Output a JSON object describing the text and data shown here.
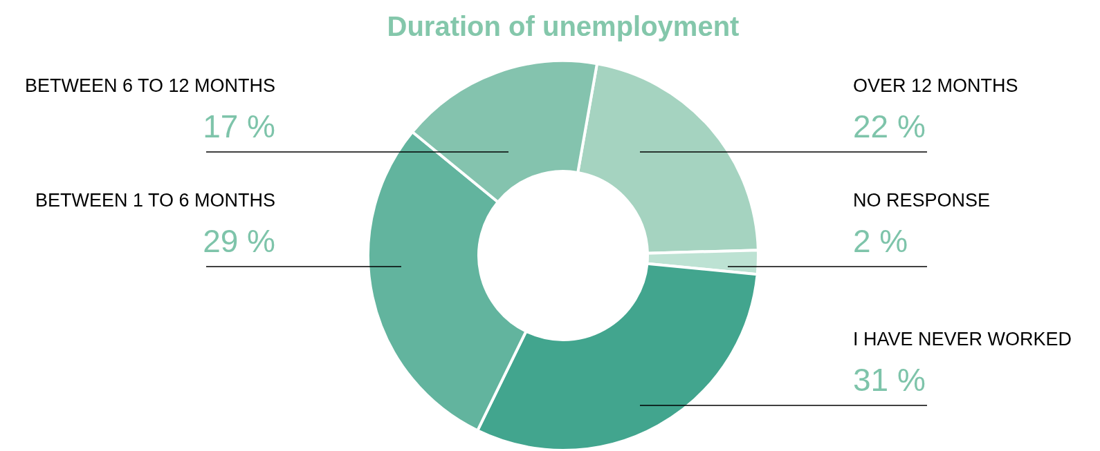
{
  "chart_data": {
    "type": "donut",
    "title": "Duration of unemployment",
    "categories": [
      "OVER 12 MONTHS",
      "NO RESPONSE",
      "I HAVE NEVER WORKED",
      "BETWEEN 1 TO 6 MONTHS",
      "BETWEEN 6 TO 12 MONTHS"
    ],
    "values": [
      22,
      2,
      31,
      29,
      17
    ],
    "colors": [
      "#a5d3c0",
      "#bde2d3",
      "#42a58e",
      "#62b49e",
      "#84c3ae"
    ],
    "value_labels": [
      "22 %",
      "2 %",
      "31 %",
      "29 %",
      "17 %"
    ],
    "legend": false
  }
}
